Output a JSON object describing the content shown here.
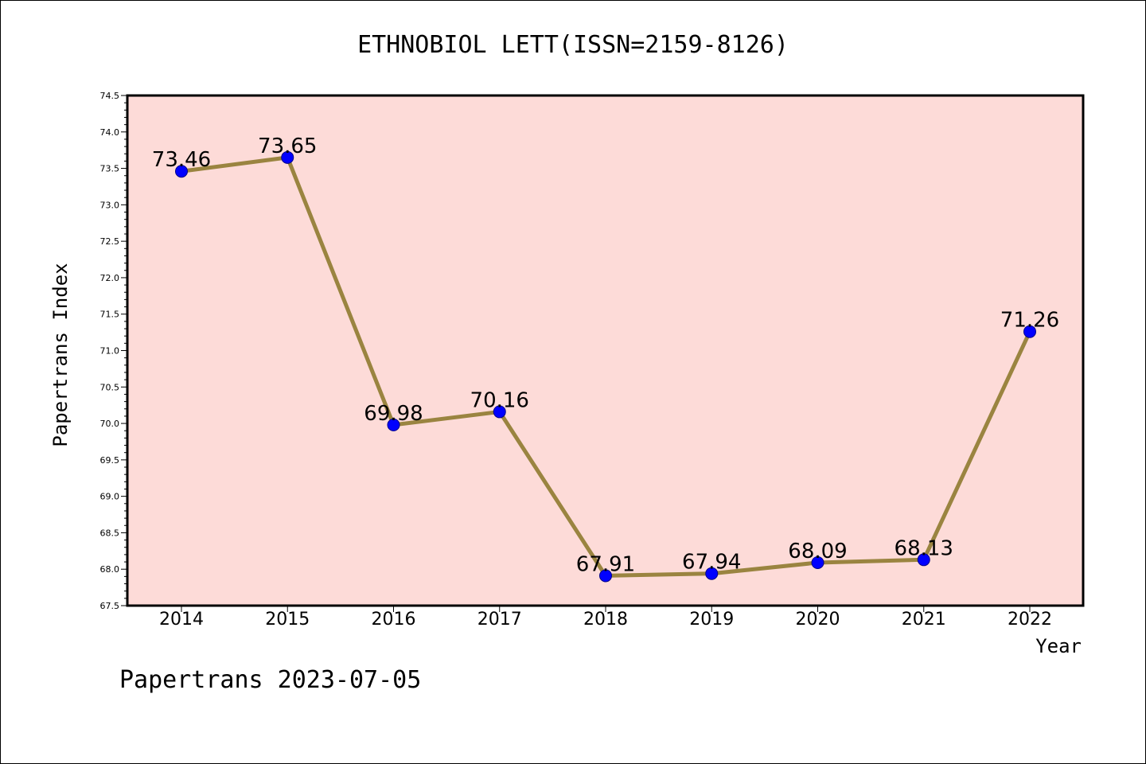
{
  "chart_data": {
    "type": "line",
    "title": "ETHNOBIOL LETT(ISSN=2159-8126)",
    "xlabel": "Year",
    "ylabel": "Papertrans Index",
    "categories": [
      "2014",
      "2015",
      "2016",
      "2017",
      "2018",
      "2019",
      "2020",
      "2021",
      "2022"
    ],
    "series": [
      {
        "values": [
          73.46,
          73.65,
          69.98,
          70.16,
          67.91,
          67.94,
          68.09,
          68.13,
          71.26
        ]
      }
    ],
    "data_labels": [
      "73.46",
      "73.65",
      "69.98",
      "70.16",
      "67.91",
      "67.94",
      "68.09",
      "68.13",
      "71.26"
    ],
    "ylim": [
      67.5,
      74.5
    ],
    "yticks": [
      "67.5",
      "68.0",
      "68.5",
      "69.0",
      "69.5",
      "70.0",
      "70.5",
      "71.0",
      "71.5",
      "72.0",
      "72.5",
      "73.0",
      "73.5",
      "74.0",
      "74.5"
    ],
    "grid": false,
    "colors": {
      "plot_background": "#fddbd8",
      "line": "#9a8440",
      "marker": "#0000ff",
      "marker_edge": "#00008b"
    }
  },
  "footer": "Papertrans 2023-07-05"
}
